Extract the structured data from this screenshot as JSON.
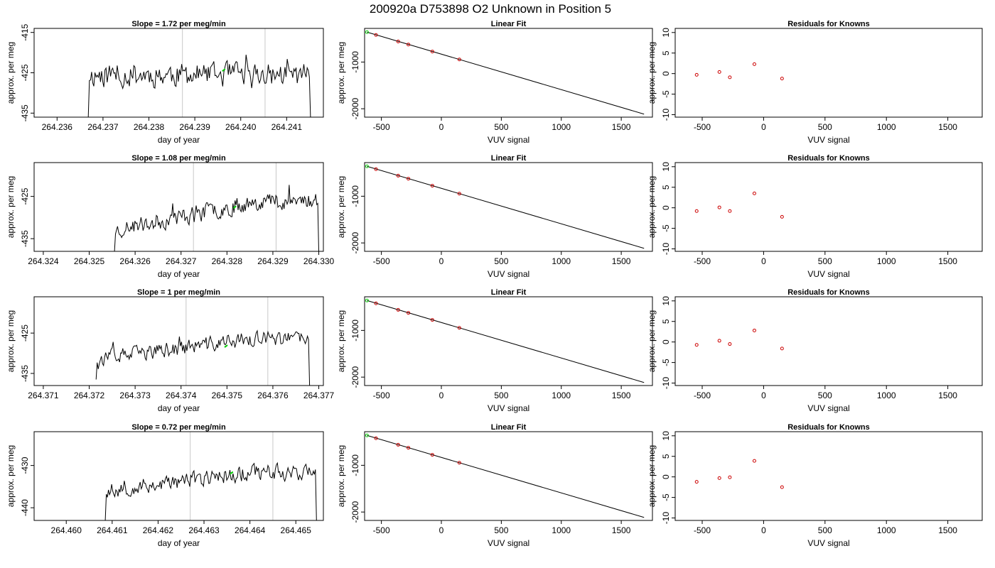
{
  "figure": {
    "title": "200920a      D753898   O2 Unknown in Position  5"
  },
  "colors": {
    "trace": "#000000",
    "known_points": "#cc0000",
    "unknown_point": "#00cc00",
    "vline": "#c8c8c8",
    "fit_line": "#000000"
  },
  "chart_data": [
    {
      "type": "line",
      "title": "Slope =  1.72  per meg/min",
      "xlabel": "day of year",
      "ylabel": "approx. per meg",
      "xlim": [
        264.2355,
        264.2418
      ],
      "ylim": [
        -436,
        -414
      ],
      "xticks": [
        264.236,
        264.237,
        264.238,
        264.239,
        264.24,
        264.241
      ],
      "xtick_labels": [
        "264.236",
        "264.237",
        "264.238",
        "264.239",
        "264.240",
        "264.241"
      ],
      "yticks": [
        -415,
        -425,
        -435
      ],
      "ytick_labels": [
        "-415",
        "-425",
        "-435"
      ],
      "vlines": [
        264.23873,
        264.24053
      ],
      "trace_x_range": [
        264.23668,
        264.24152
      ],
      "trace_base": -425.5,
      "trace_amp": 3.2,
      "trace_seed": 11,
      "trace_start": -436,
      "trace_end": -436,
      "marker": {
        "x": 264.23963,
        "y": -424.6
      }
    },
    {
      "type": "scatter",
      "title": "Linear Fit",
      "xlabel": "VUV signal",
      "ylabel": "approx. per meg",
      "xlim": [
        -640,
        1760
      ],
      "ylim": [
        -2180,
        -280
      ],
      "xticks": [
        -500,
        0,
        500,
        1000,
        1500
      ],
      "xtick_labels": [
        "-500",
        "0",
        "500",
        "1000",
        "1500"
      ],
      "yticks": [
        -1000,
        -2000
      ],
      "ytick_labels": [
        "-1000",
        "-2000"
      ],
      "fit_line": {
        "x": [
          -620,
          1690
        ],
        "y": [
          -360,
          -2115
        ]
      },
      "points": {
        "x": [
          -545,
          -360,
          -275,
          -75,
          150
        ],
        "y": [
          -420,
          -560,
          -625,
          -775,
          -945
        ]
      },
      "unknown": {
        "x": -620,
        "y": -360
      }
    },
    {
      "type": "scatter",
      "title": "Residuals for Knowns",
      "xlabel": "VUV signal",
      "ylabel": "approx. per meg",
      "xlim": [
        -720,
        1780
      ],
      "ylim": [
        -10.6,
        11
      ],
      "xticks": [
        -500,
        0,
        500,
        1000,
        1500
      ],
      "xtick_labels": [
        "-500",
        "0",
        "500",
        "1000",
        "1500"
      ],
      "yticks": [
        10,
        5,
        0,
        -5,
        -10
      ],
      "ytick_labels": [
        "10",
        "5",
        "0",
        "-5",
        "-10"
      ],
      "points": {
        "x": [
          -545,
          -360,
          -275,
          -75,
          150
        ],
        "y": [
          -0.3,
          0.4,
          -0.9,
          2.3,
          -1.2
        ]
      }
    },
    {
      "type": "line",
      "title": "Slope =  1.08  per meg/min",
      "xlabel": "day of year",
      "ylabel": "approx. per meg",
      "xlim": [
        264.3238,
        264.3301
      ],
      "ylim": [
        -438,
        -417
      ],
      "xticks": [
        264.324,
        264.325,
        264.326,
        264.327,
        264.328,
        264.329,
        264.33
      ],
      "xtick_labels": [
        "264.324",
        "264.325",
        "264.326",
        "264.327",
        "264.328",
        "264.329",
        "264.330"
      ],
      "yticks": [
        -425,
        -435
      ],
      "ytick_labels": [
        "-425",
        "-435"
      ],
      "vlines": [
        264.32727,
        264.32907
      ],
      "trace_x_range": [
        264.32555,
        264.33
      ],
      "trace_base_start": -433,
      "trace_base_end": -426,
      "trace_amp": 2.2,
      "trace_seed": 23,
      "trace_start": -438,
      "trace_end": -438,
      "marker": {
        "x": 264.32817,
        "y": -427.8
      }
    },
    {
      "type": "scatter",
      "title": "Linear Fit",
      "xlabel": "VUV signal",
      "ylabel": "approx. per meg",
      "xlim": [
        -640,
        1760
      ],
      "ylim": [
        -2180,
        -280
      ],
      "xticks": [
        -500,
        0,
        500,
        1000,
        1500
      ],
      "xtick_labels": [
        "-500",
        "0",
        "500",
        "1000",
        "1500"
      ],
      "yticks": [
        -1000,
        -2000
      ],
      "ytick_labels": [
        "-1000",
        "-2000"
      ],
      "fit_line": {
        "x": [
          -620,
          1690
        ],
        "y": [
          -360,
          -2115
        ]
      },
      "points": {
        "x": [
          -545,
          -360,
          -275,
          -75,
          150
        ],
        "y": [
          -420,
          -560,
          -625,
          -775,
          -945
        ]
      },
      "unknown": {
        "x": -620,
        "y": -360
      }
    },
    {
      "type": "scatter",
      "title": "Residuals for Knowns",
      "xlabel": "VUV signal",
      "ylabel": "approx. per meg",
      "xlim": [
        -720,
        1780
      ],
      "ylim": [
        -10.6,
        11
      ],
      "xticks": [
        -500,
        0,
        500,
        1000,
        1500
      ],
      "xtick_labels": [
        "-500",
        "0",
        "500",
        "1000",
        "1500"
      ],
      "yticks": [
        10,
        5,
        0,
        -5,
        -10
      ],
      "ytick_labels": [
        "10",
        "5",
        "0",
        "-5",
        "-10"
      ],
      "points": {
        "x": [
          -545,
          -360,
          -275,
          -75,
          150
        ],
        "y": [
          -0.8,
          0.1,
          -0.8,
          3.5,
          -2.2
        ]
      }
    },
    {
      "type": "line",
      "title": "Slope =  1  per meg/min",
      "xlabel": "day of year",
      "ylabel": "approx. per meg",
      "xlim": [
        264.3708,
        264.3771
      ],
      "ylim": [
        -438,
        -416
      ],
      "xticks": [
        264.371,
        264.372,
        264.373,
        264.374,
        264.375,
        264.376,
        264.377
      ],
      "xtick_labels": [
        "264.371",
        "264.372",
        "264.373",
        "264.374",
        "264.375",
        "264.376",
        "264.377"
      ],
      "yticks": [
        -425,
        -435
      ],
      "ytick_labels": [
        "-425",
        "-435"
      ],
      "vlines": [
        264.37411,
        264.37589
      ],
      "trace_x_range": [
        264.37215,
        264.3768
      ],
      "trace_base_start": -431.5,
      "trace_base_end": -426.5,
      "trace_amp": 2.0,
      "trace_seed": 37,
      "trace_start": -436.5,
      "trace_end": -438,
      "marker": {
        "x": 264.37498,
        "y": -428.5
      }
    },
    {
      "type": "scatter",
      "title": "Linear Fit",
      "xlabel": "VUV signal",
      "ylabel": "approx. per meg",
      "xlim": [
        -640,
        1760
      ],
      "ylim": [
        -2180,
        -280
      ],
      "xticks": [
        -500,
        0,
        500,
        1000,
        1500
      ],
      "xtick_labels": [
        "-500",
        "0",
        "500",
        "1000",
        "1500"
      ],
      "yticks": [
        -1000,
        -2000
      ],
      "ytick_labels": [
        "-1000",
        "-2000"
      ],
      "fit_line": {
        "x": [
          -620,
          1690
        ],
        "y": [
          -360,
          -2115
        ]
      },
      "points": {
        "x": [
          -545,
          -360,
          -275,
          -75,
          150
        ],
        "y": [
          -420,
          -560,
          -625,
          -775,
          -945
        ]
      },
      "unknown": {
        "x": -620,
        "y": -360
      }
    },
    {
      "type": "scatter",
      "title": "Residuals for Knowns",
      "xlabel": "VUV signal",
      "ylabel": "approx. per meg",
      "xlim": [
        -720,
        1780
      ],
      "ylim": [
        -10.6,
        11
      ],
      "xticks": [
        -500,
        0,
        500,
        1000,
        1500
      ],
      "xtick_labels": [
        "-500",
        "0",
        "500",
        "1000",
        "1500"
      ],
      "yticks": [
        10,
        5,
        0,
        -5,
        -10
      ],
      "ytick_labels": [
        "10",
        "5",
        "0",
        "-5",
        "-10"
      ],
      "points": {
        "x": [
          -545,
          -360,
          -275,
          -75,
          150
        ],
        "y": [
          -0.7,
          0.3,
          -0.5,
          2.8,
          -1.6
        ]
      }
    },
    {
      "type": "line",
      "title": "Slope =  0.72  per meg/min",
      "xlabel": "day of year",
      "ylabel": "approx. per meg",
      "xlim": [
        264.4593,
        264.4656
      ],
      "ylim": [
        -443,
        -422
      ],
      "xticks": [
        264.46,
        264.461,
        264.462,
        264.463,
        264.464,
        264.465
      ],
      "xtick_labels": [
        "264.460",
        "264.461",
        "264.462",
        "264.463",
        "264.464",
        "264.465"
      ],
      "yticks": [
        -430,
        -440
      ],
      "ytick_labels": [
        "-430",
        "-440"
      ],
      "vlines": [
        264.4627,
        264.4645
      ],
      "trace_x_range": [
        264.46085,
        264.46545
      ],
      "trace_base_start": -436,
      "trace_base_end": -431.5,
      "trace_amp": 2.0,
      "trace_seed": 53,
      "trace_start": -443,
      "trace_end": -443,
      "marker": {
        "x": 264.4636,
        "y": -432.0
      }
    },
    {
      "type": "scatter",
      "title": "Linear Fit",
      "xlabel": "VUV signal",
      "ylabel": "approx. per meg",
      "xlim": [
        -640,
        1760
      ],
      "ylim": [
        -2180,
        -280
      ],
      "xticks": [
        -500,
        0,
        500,
        1000,
        1500
      ],
      "xtick_labels": [
        "-500",
        "0",
        "500",
        "1000",
        "1500"
      ],
      "yticks": [
        -1000,
        -2000
      ],
      "ytick_labels": [
        "-1000",
        "-2000"
      ],
      "fit_line": {
        "x": [
          -620,
          1690
        ],
        "y": [
          -360,
          -2115
        ]
      },
      "points": {
        "x": [
          -545,
          -360,
          -275,
          -75,
          150
        ],
        "y": [
          -420,
          -560,
          -625,
          -775,
          -945
        ]
      },
      "unknown": {
        "x": -620,
        "y": -360
      }
    },
    {
      "type": "scatter",
      "title": "Residuals for Knowns",
      "xlabel": "VUV signal",
      "ylabel": "approx. per meg",
      "xlim": [
        -720,
        1780
      ],
      "ylim": [
        -10.6,
        11
      ],
      "xticks": [
        -500,
        0,
        500,
        1000,
        1500
      ],
      "xtick_labels": [
        "-500",
        "0",
        "500",
        "1000",
        "1500"
      ],
      "yticks": [
        10,
        5,
        0,
        -5,
        -10
      ],
      "ytick_labels": [
        "10",
        "5",
        "0",
        "-5",
        "-10"
      ],
      "points": {
        "x": [
          -545,
          -360,
          -275,
          -75,
          150
        ],
        "y": [
          -1.2,
          -0.3,
          -0.1,
          3.9,
          -2.5
        ]
      }
    }
  ]
}
